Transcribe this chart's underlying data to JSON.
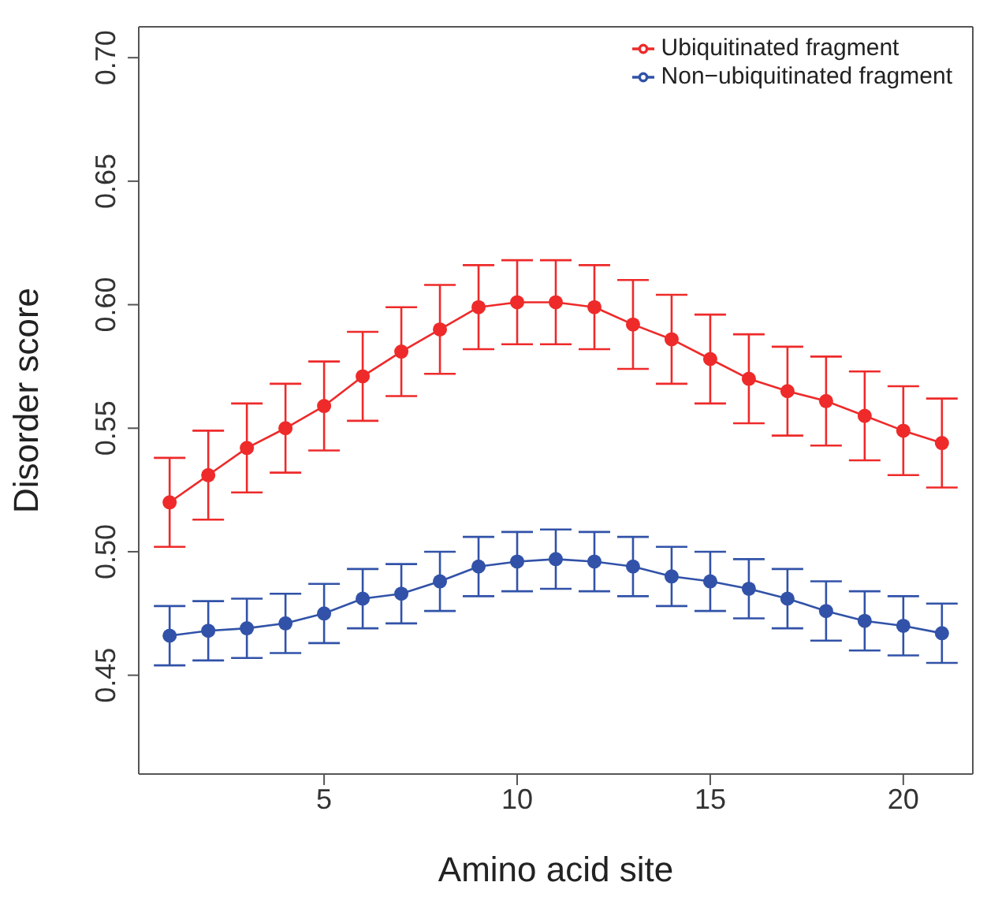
{
  "chart_data": {
    "type": "line",
    "xlabel": "Amino acid site",
    "ylabel": "Disorder score",
    "x": [
      1,
      2,
      3,
      4,
      5,
      6,
      7,
      8,
      9,
      10,
      11,
      12,
      13,
      14,
      15,
      16,
      17,
      18,
      19,
      20,
      21
    ],
    "series": [
      {
        "name": "Ubiquitinated fragment",
        "color": "#ee2a2a",
        "values": [
          0.52,
          0.531,
          0.542,
          0.55,
          0.559,
          0.571,
          0.581,
          0.59,
          0.599,
          0.601,
          0.601,
          0.599,
          0.592,
          0.586,
          0.578,
          0.57,
          0.565,
          0.561,
          0.555,
          0.549,
          0.544
        ],
        "errors": [
          0.018,
          0.018,
          0.018,
          0.018,
          0.018,
          0.018,
          0.018,
          0.018,
          0.017,
          0.017,
          0.017,
          0.017,
          0.018,
          0.018,
          0.018,
          0.018,
          0.018,
          0.018,
          0.018,
          0.018,
          0.018
        ]
      },
      {
        "name": "Non−ubiquitinated fragment",
        "color": "#3152a8",
        "values": [
          0.466,
          0.468,
          0.469,
          0.471,
          0.475,
          0.481,
          0.483,
          0.488,
          0.494,
          0.496,
          0.497,
          0.496,
          0.494,
          0.49,
          0.488,
          0.485,
          0.481,
          0.476,
          0.472,
          0.47,
          0.467
        ],
        "errors": [
          0.012,
          0.012,
          0.012,
          0.012,
          0.012,
          0.012,
          0.012,
          0.012,
          0.012,
          0.012,
          0.012,
          0.012,
          0.012,
          0.012,
          0.012,
          0.012,
          0.012,
          0.012,
          0.012,
          0.012,
          0.012
        ]
      }
    ],
    "xlim": [
      0.2,
      21.8
    ],
    "xticks": [
      5,
      10,
      15,
      20
    ],
    "ylim": [
      0.41,
      0.7125
    ],
    "yticks": [
      0.45,
      {
        "value": 0.5,
        "label": "0.50"
      },
      0.55,
      {
        "value": 0.6,
        "label": "0.60"
      },
      0.65,
      {
        "value": 0.7,
        "label": "0.70"
      }
    ],
    "grid": false,
    "legend": "top right",
    "marker": "circle",
    "line_style": "solid"
  }
}
